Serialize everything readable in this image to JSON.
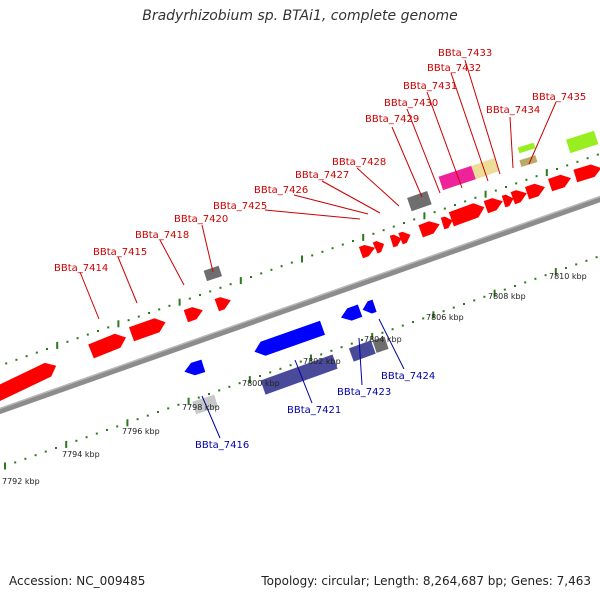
{
  "title": "Bradyrhizobium sp. BTAi1, complete genome",
  "footer": {
    "accession": "Accession: NC_009485",
    "topology": "Topology: circular; Length: 8,264,687 bp; Genes: 7,463"
  },
  "colors": {
    "forward_label": "#cc0000",
    "reverse_label": "#0000aa",
    "tick": "#2a7a1a",
    "backbone": "#8c8c8c",
    "feature_red": "#ff0000",
    "feature_blue": "#0000ff",
    "feature_navy": "#4a4a9a",
    "feature_gray": "#6e6e6e",
    "feature_lightgray": "#c8c8c8",
    "feature_magenta": "#ee2299",
    "feature_tan": "#eedd99",
    "feature_lime": "#99ee22",
    "feature_olive": "#bbaa66"
  },
  "axis_labels": [
    "7792 kbp",
    "7794 kbp",
    "7796 kbp",
    "7798 kbp",
    "7800 kbp",
    "7802 kbp",
    "7804 kbp",
    "7806 kbp",
    "7808 kbp",
    "7810 kbp"
  ],
  "forward_genes": [
    "BBta_7414",
    "BBta_7415",
    "BBta_7418",
    "BBta_7420",
    "BBta_7425",
    "BBta_7426",
    "BBta_7427",
    "BBta_7428",
    "BBta_7429",
    "BBta_7430",
    "BBta_7431",
    "BBta_7432",
    "BBta_7433",
    "BBta_7434",
    "BBta_7435"
  ],
  "reverse_genes": [
    "BBta_7416",
    "BBta_7421",
    "BBta_7423",
    "BBta_7424"
  ]
}
